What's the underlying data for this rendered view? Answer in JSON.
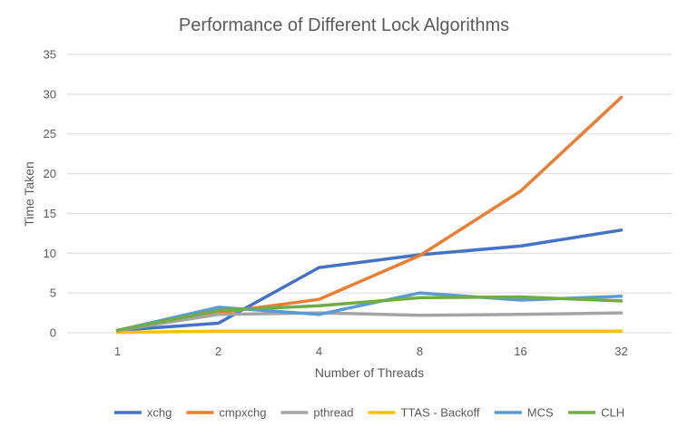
{
  "chart_data": {
    "type": "line",
    "title": "Performance of Different Lock Algorithms",
    "xlabel": "Number of Threads",
    "ylabel": "Time Taken",
    "categories": [
      "1",
      "2",
      "4",
      "8",
      "16",
      "32"
    ],
    "ylim": [
      0,
      35
    ],
    "yticks": [
      0,
      5,
      10,
      15,
      20,
      25,
      30,
      35
    ],
    "grid": true,
    "legend_position": "bottom",
    "series": [
      {
        "name": "xchg",
        "color": "#4472C4",
        "values": [
          0.3,
          1.2,
          8.2,
          9.8,
          10.9,
          12.9
        ]
      },
      {
        "name": "cmpxchg",
        "color": "#ED7D31",
        "values": [
          0.3,
          2.5,
          4.2,
          9.7,
          17.8,
          29.6
        ]
      },
      {
        "name": "pthread",
        "color": "#A5A5A5",
        "values": [
          0.3,
          2.3,
          2.5,
          2.2,
          2.3,
          2.5
        ]
      },
      {
        "name": "TTAS - Backoff",
        "color": "#FFC000",
        "values": [
          0.05,
          0.2,
          0.2,
          0.2,
          0.2,
          0.2
        ]
      },
      {
        "name": "MCS",
        "color": "#5B9BD5",
        "values": [
          0.3,
          3.2,
          2.3,
          5.0,
          4.1,
          4.6
        ]
      },
      {
        "name": "CLH",
        "color": "#70AD47",
        "values": [
          0.3,
          2.8,
          3.4,
          4.4,
          4.5,
          4.0
        ]
      }
    ]
  }
}
